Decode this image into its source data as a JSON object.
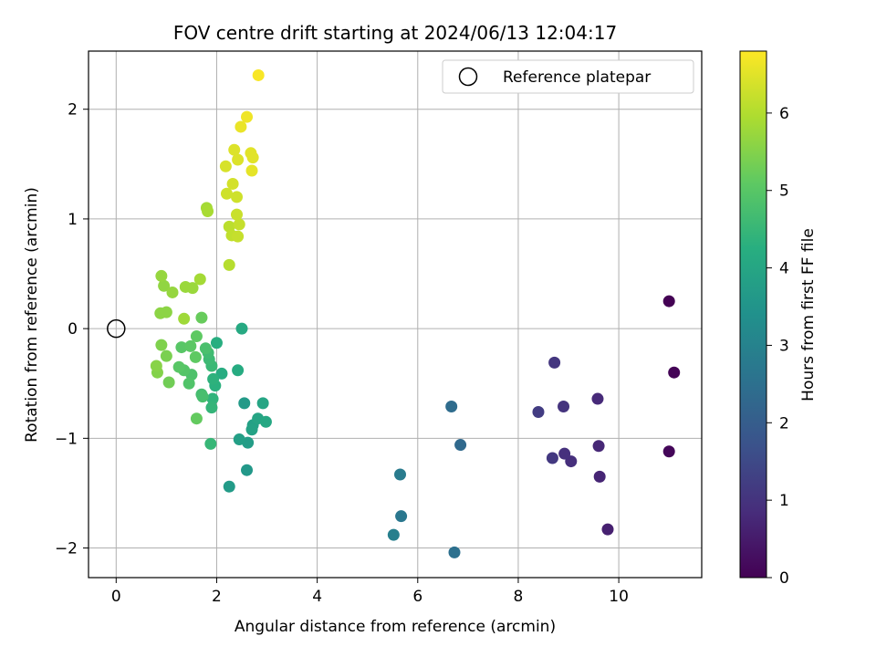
{
  "chart_data": {
    "type": "scatter",
    "title": "FOV centre drift starting at 2024/06/13 12:04:17",
    "xlabel": "Angular distance from reference (arcmin)",
    "ylabel": "Rotation from reference (arcmin)",
    "xlim": [
      -0.55,
      11.65
    ],
    "ylim": [
      -2.27,
      2.53
    ],
    "xticks": [
      0,
      2,
      4,
      6,
      8,
      10
    ],
    "yticks": [
      -2,
      -1,
      0,
      1,
      2
    ],
    "ytick_labels": [
      "−2",
      "−1",
      "0",
      "1",
      "2"
    ],
    "grid": true,
    "legend": {
      "position": "top-right",
      "entries": [
        "Reference platepar"
      ]
    },
    "reference": {
      "x": 0,
      "y": 0,
      "marker": "hollow-circle"
    },
    "colorbar": {
      "label": "Hours from first FF file",
      "colormap": "viridis",
      "range": [
        0,
        6.8
      ],
      "ticks": [
        0,
        1,
        2,
        3,
        4,
        5,
        6
      ]
    },
    "points": [
      {
        "x": 11.0,
        "y": 0.25,
        "h": 0.0
      },
      {
        "x": 11.1,
        "y": -0.4,
        "h": 0.05
      },
      {
        "x": 11.0,
        "y": -1.12,
        "h": 0.1
      },
      {
        "x": 9.78,
        "y": -1.83,
        "h": 0.6
      },
      {
        "x": 9.62,
        "y": -1.35,
        "h": 0.7
      },
      {
        "x": 9.6,
        "y": -1.07,
        "h": 0.75
      },
      {
        "x": 9.58,
        "y": -0.64,
        "h": 0.8
      },
      {
        "x": 9.05,
        "y": -1.21,
        "h": 0.9
      },
      {
        "x": 8.92,
        "y": -1.14,
        "h": 0.95
      },
      {
        "x": 8.9,
        "y": -0.71,
        "h": 1.0
      },
      {
        "x": 8.72,
        "y": -0.31,
        "h": 1.05
      },
      {
        "x": 8.68,
        "y": -1.18,
        "h": 1.1
      },
      {
        "x": 8.4,
        "y": -0.76,
        "h": 1.2
      },
      {
        "x": 6.85,
        "y": -1.06,
        "h": 2.3
      },
      {
        "x": 6.67,
        "y": -0.71,
        "h": 2.4
      },
      {
        "x": 6.73,
        "y": -2.04,
        "h": 2.5
      },
      {
        "x": 5.67,
        "y": -1.71,
        "h": 2.7
      },
      {
        "x": 5.65,
        "y": -1.33,
        "h": 2.8
      },
      {
        "x": 5.52,
        "y": -1.88,
        "h": 2.9
      },
      {
        "x": 2.6,
        "y": -1.29,
        "h": 3.6
      },
      {
        "x": 2.55,
        "y": -0.68,
        "h": 3.65
      },
      {
        "x": 2.25,
        "y": -1.44,
        "h": 3.7
      },
      {
        "x": 2.62,
        "y": -1.04,
        "h": 3.75
      },
      {
        "x": 2.45,
        "y": -1.01,
        "h": 3.8
      },
      {
        "x": 2.72,
        "y": -0.88,
        "h": 3.85
      },
      {
        "x": 2.7,
        "y": -0.92,
        "h": 3.9
      },
      {
        "x": 2.82,
        "y": -0.82,
        "h": 3.95
      },
      {
        "x": 2.92,
        "y": -0.68,
        "h": 4.0
      },
      {
        "x": 2.98,
        "y": -0.85,
        "h": 4.05
      },
      {
        "x": 2.5,
        "y": 0.0,
        "h": 4.1
      },
      {
        "x": 2.42,
        "y": -0.38,
        "h": 4.15
      },
      {
        "x": 2.1,
        "y": -0.41,
        "h": 4.2
      },
      {
        "x": 2.0,
        "y": -0.13,
        "h": 4.25
      },
      {
        "x": 1.97,
        "y": -0.52,
        "h": 4.3
      },
      {
        "x": 1.93,
        "y": -0.46,
        "h": 4.35
      },
      {
        "x": 1.92,
        "y": -0.64,
        "h": 4.4
      },
      {
        "x": 1.9,
        "y": -0.72,
        "h": 4.45
      },
      {
        "x": 1.88,
        "y": -1.05,
        "h": 4.5
      },
      {
        "x": 1.9,
        "y": -0.34,
        "h": 4.55
      },
      {
        "x": 1.85,
        "y": -0.28,
        "h": 4.6
      },
      {
        "x": 1.83,
        "y": -0.22,
        "h": 4.65
      },
      {
        "x": 1.7,
        "y": -0.6,
        "h": 4.7
      },
      {
        "x": 1.72,
        "y": -0.62,
        "h": 4.75
      },
      {
        "x": 1.78,
        "y": -0.18,
        "h": 4.8
      },
      {
        "x": 1.5,
        "y": -0.42,
        "h": 4.85
      },
      {
        "x": 1.45,
        "y": -0.5,
        "h": 4.9
      },
      {
        "x": 1.35,
        "y": -0.38,
        "h": 4.95
      },
      {
        "x": 1.25,
        "y": -0.35,
        "h": 5.0
      },
      {
        "x": 1.3,
        "y": -0.17,
        "h": 5.0
      },
      {
        "x": 1.48,
        "y": -0.16,
        "h": 5.05
      },
      {
        "x": 1.58,
        "y": -0.26,
        "h": 5.1
      },
      {
        "x": 1.6,
        "y": -0.07,
        "h": 5.1
      },
      {
        "x": 1.6,
        "y": -0.82,
        "h": 5.15
      },
      {
        "x": 1.7,
        "y": 0.1,
        "h": 5.2
      },
      {
        "x": 1.05,
        "y": -0.49,
        "h": 5.3
      },
      {
        "x": 1.0,
        "y": -0.25,
        "h": 5.4
      },
      {
        "x": 0.9,
        "y": -0.15,
        "h": 5.45
      },
      {
        "x": 0.82,
        "y": -0.4,
        "h": 5.5
      },
      {
        "x": 0.8,
        "y": -0.34,
        "h": 5.55
      },
      {
        "x": 0.88,
        "y": 0.14,
        "h": 5.6
      },
      {
        "x": 1.0,
        "y": 0.15,
        "h": 5.6
      },
      {
        "x": 0.95,
        "y": 0.39,
        "h": 5.65
      },
      {
        "x": 0.9,
        "y": 0.48,
        "h": 5.7
      },
      {
        "x": 1.12,
        "y": 0.33,
        "h": 5.7
      },
      {
        "x": 1.38,
        "y": 0.38,
        "h": 5.75
      },
      {
        "x": 1.52,
        "y": 0.37,
        "h": 5.75
      },
      {
        "x": 1.35,
        "y": 0.09,
        "h": 5.8
      },
      {
        "x": 1.67,
        "y": 0.45,
        "h": 5.85
      },
      {
        "x": 1.8,
        "y": 1.1,
        "h": 5.85
      },
      {
        "x": 1.82,
        "y": 1.07,
        "h": 5.9
      },
      {
        "x": 2.25,
        "y": 0.58,
        "h": 6.05
      },
      {
        "x": 2.25,
        "y": 0.93,
        "h": 6.1
      },
      {
        "x": 2.3,
        "y": 0.85,
        "h": 6.15
      },
      {
        "x": 2.42,
        "y": 0.84,
        "h": 6.2
      },
      {
        "x": 2.45,
        "y": 0.95,
        "h": 6.2
      },
      {
        "x": 2.4,
        "y": 1.04,
        "h": 6.25
      },
      {
        "x": 2.2,
        "y": 1.23,
        "h": 6.3
      },
      {
        "x": 2.4,
        "y": 1.2,
        "h": 6.3
      },
      {
        "x": 2.32,
        "y": 1.32,
        "h": 6.35
      },
      {
        "x": 2.18,
        "y": 1.48,
        "h": 6.4
      },
      {
        "x": 2.35,
        "y": 1.63,
        "h": 6.45
      },
      {
        "x": 2.42,
        "y": 1.54,
        "h": 6.45
      },
      {
        "x": 2.68,
        "y": 1.6,
        "h": 6.5
      },
      {
        "x": 2.72,
        "y": 1.56,
        "h": 6.5
      },
      {
        "x": 2.7,
        "y": 1.44,
        "h": 6.55
      },
      {
        "x": 2.48,
        "y": 1.84,
        "h": 6.6
      },
      {
        "x": 2.6,
        "y": 1.93,
        "h": 6.65
      },
      {
        "x": 2.83,
        "y": 2.31,
        "h": 6.75
      }
    ]
  }
}
